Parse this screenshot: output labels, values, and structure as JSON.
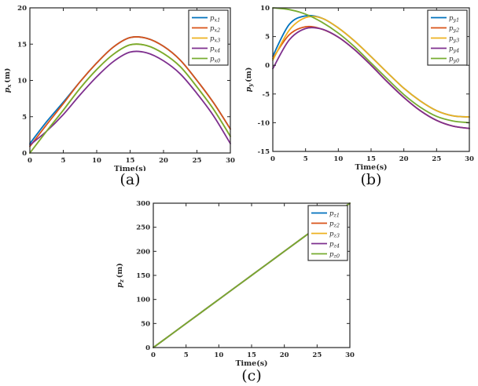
{
  "figure": {
    "background": "#ffffff",
    "axis_color": "#262626"
  },
  "colors": {
    "series_blue": "#0072BD",
    "series_orange": "#D95319",
    "series_yellow": "#EDB120",
    "series_purple": "#7E2F8E",
    "series_green": "#77AC30",
    "axis": "#262626",
    "legend_border": "#333333",
    "legend_fill": "#ffffff"
  },
  "chart_data": [
    {
      "type": "line",
      "caption": "(a)",
      "title": "",
      "xlabel": "Time(s)",
      "ylabel_base": "p",
      "ylabel_sub": "x",
      "ylabel_unit": "(m)",
      "xlim": [
        0,
        30
      ],
      "ylim": [
        0,
        20
      ],
      "xticks": [
        0,
        5,
        10,
        15,
        20,
        25,
        30
      ],
      "yticks": [
        0,
        5,
        10,
        15,
        20
      ],
      "grid": false,
      "legend_position": "top-right",
      "x": [
        0,
        2.5,
        5,
        7.5,
        10,
        12.5,
        15,
        17.5,
        20,
        22.5,
        25,
        27.5,
        30
      ],
      "series": [
        {
          "name_base": "p",
          "name_sub": "x1",
          "color": "#0072BD",
          "values": [
            1.3,
            4.3,
            7.0,
            9.8,
            12.4,
            14.6,
            15.9,
            15.8,
            14.7,
            12.8,
            10.0,
            6.9,
            3.3
          ]
        },
        {
          "name_base": "p",
          "name_sub": "x2",
          "color": "#D95319",
          "values": [
            0.9,
            3.9,
            6.8,
            9.8,
            12.4,
            14.6,
            15.9,
            15.8,
            14.7,
            12.8,
            10.0,
            6.9,
            3.3
          ]
        },
        {
          "name_base": "p",
          "name_sub": "x3",
          "color": "#EDB120",
          "values": [
            0.0,
            3.0,
            5.9,
            8.9,
            11.5,
            13.6,
            14.9,
            14.8,
            13.7,
            11.9,
            9.1,
            6.0,
            2.3
          ]
        },
        {
          "name_base": "p",
          "name_sub": "x4",
          "color": "#7E2F8E",
          "values": [
            1.1,
            3.0,
            5.3,
            8.0,
            10.5,
            12.6,
            13.9,
            13.8,
            12.7,
            10.9,
            8.2,
            5.1,
            1.3
          ]
        },
        {
          "name_base": "p",
          "name_sub": "x0",
          "color": "#77AC30",
          "values": [
            0.0,
            3.0,
            5.9,
            8.9,
            11.5,
            13.6,
            14.9,
            14.8,
            13.7,
            11.9,
            9.1,
            6.0,
            2.3
          ]
        }
      ]
    },
    {
      "type": "line",
      "caption": "(b)",
      "title": "",
      "xlabel": "Time(s)",
      "ylabel_base": "p",
      "ylabel_sub": "y",
      "ylabel_unit": "(m)",
      "xlim": [
        0,
        30
      ],
      "ylim": [
        -15,
        10
      ],
      "xticks": [
        0,
        5,
        10,
        15,
        20,
        25,
        30
      ],
      "yticks": [
        -15,
        -10,
        -5,
        0,
        5,
        10
      ],
      "grid": false,
      "legend_position": "top-right",
      "x": [
        0,
        2.5,
        5,
        7.5,
        10,
        12.5,
        15,
        17.5,
        20,
        22.5,
        25,
        27.5,
        30
      ],
      "series": [
        {
          "name_base": "p",
          "name_sub": "y1",
          "color": "#0072BD",
          "values": [
            1.6,
            7.1,
            8.6,
            8.2,
            6.5,
            4.2,
            1.5,
            -1.3,
            -4.0,
            -6.2,
            -7.9,
            -8.8,
            -9.0
          ]
        },
        {
          "name_base": "p",
          "name_sub": "y2",
          "color": "#D95319",
          "values": [
            1.2,
            5.3,
            6.7,
            6.3,
            4.9,
            2.7,
            0.0,
            -2.9,
            -5.6,
            -7.9,
            -9.6,
            -10.6,
            -11.0
          ]
        },
        {
          "name_base": "p",
          "name_sub": "y3",
          "color": "#EDB120",
          "values": [
            0.9,
            6.1,
            8.3,
            8.2,
            6.5,
            4.2,
            1.5,
            -1.3,
            -4.0,
            -6.2,
            -7.9,
            -8.8,
            -9.0
          ]
        },
        {
          "name_base": "p",
          "name_sub": "y4",
          "color": "#7E2F8E",
          "values": [
            -0.6,
            4.4,
            6.4,
            6.3,
            4.9,
            2.7,
            0.0,
            -2.9,
            -5.6,
            -7.9,
            -9.6,
            -10.6,
            -11.0
          ]
        },
        {
          "name_base": "p",
          "name_sub": "y0",
          "color": "#77AC30",
          "values": [
            10.0,
            9.7,
            8.9,
            7.5,
            5.6,
            3.2,
            0.4,
            -2.4,
            -5.1,
            -7.3,
            -8.9,
            -9.7,
            -10.0
          ]
        }
      ]
    },
    {
      "type": "line",
      "caption": "(c)",
      "title": "",
      "xlabel": "Time(s)",
      "ylabel_base": "p",
      "ylabel_sub": "z",
      "ylabel_unit": "(m)",
      "xlim": [
        0,
        30
      ],
      "ylim": [
        0,
        300
      ],
      "xticks": [
        0,
        5,
        10,
        15,
        20,
        25,
        30
      ],
      "yticks": [
        0,
        50,
        100,
        150,
        200,
        250,
        300
      ],
      "grid": false,
      "legend_position": "top-right",
      "x": [
        0,
        2.5,
        5,
        7.5,
        10,
        12.5,
        15,
        17.5,
        20,
        22.5,
        25,
        27.5,
        30
      ],
      "series": [
        {
          "name_base": "p",
          "name_sub": "z1",
          "color": "#0072BD",
          "values": [
            0,
            25,
            50,
            75,
            100,
            125,
            150,
            175,
            200,
            225,
            250,
            275,
            300
          ]
        },
        {
          "name_base": "p",
          "name_sub": "z2",
          "color": "#D95319",
          "values": [
            0,
            25,
            50,
            75,
            100,
            125,
            150,
            175,
            200,
            225,
            250,
            275,
            300
          ]
        },
        {
          "name_base": "p",
          "name_sub": "z3",
          "color": "#EDB120",
          "values": [
            0,
            25,
            50,
            75,
            100,
            125,
            150,
            175,
            200,
            225,
            250,
            275,
            300
          ]
        },
        {
          "name_base": "p",
          "name_sub": "z4",
          "color": "#7E2F8E",
          "values": [
            0,
            25,
            50,
            75,
            100,
            125,
            150,
            175,
            200,
            225,
            250,
            275,
            300
          ]
        },
        {
          "name_base": "p",
          "name_sub": "z0",
          "color": "#77AC30",
          "values": [
            0,
            25,
            50,
            75,
            100,
            125,
            150,
            175,
            200,
            225,
            250,
            275,
            300
          ]
        }
      ]
    }
  ]
}
